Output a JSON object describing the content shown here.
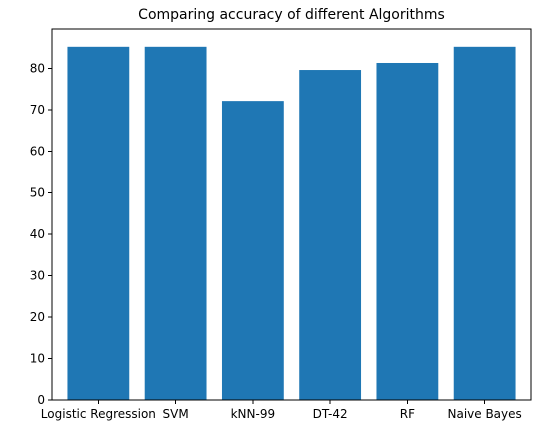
{
  "chart_data": {
    "type": "bar",
    "title": "Comparing accuracy of different Algorithms",
    "categories": [
      "Logistic Regression",
      "SVM",
      "kNN-99",
      "DT-42",
      "RF",
      "Naive Bayes"
    ],
    "values": [
      85.2,
      85.2,
      72.1,
      79.6,
      81.3,
      85.2
    ],
    "xlabel": "",
    "ylabel": "",
    "ylim": [
      0,
      89.5
    ],
    "yticks": [
      0,
      10,
      20,
      30,
      40,
      50,
      60,
      70,
      80
    ],
    "grid": false,
    "bar_color": "#1f77b4"
  }
}
